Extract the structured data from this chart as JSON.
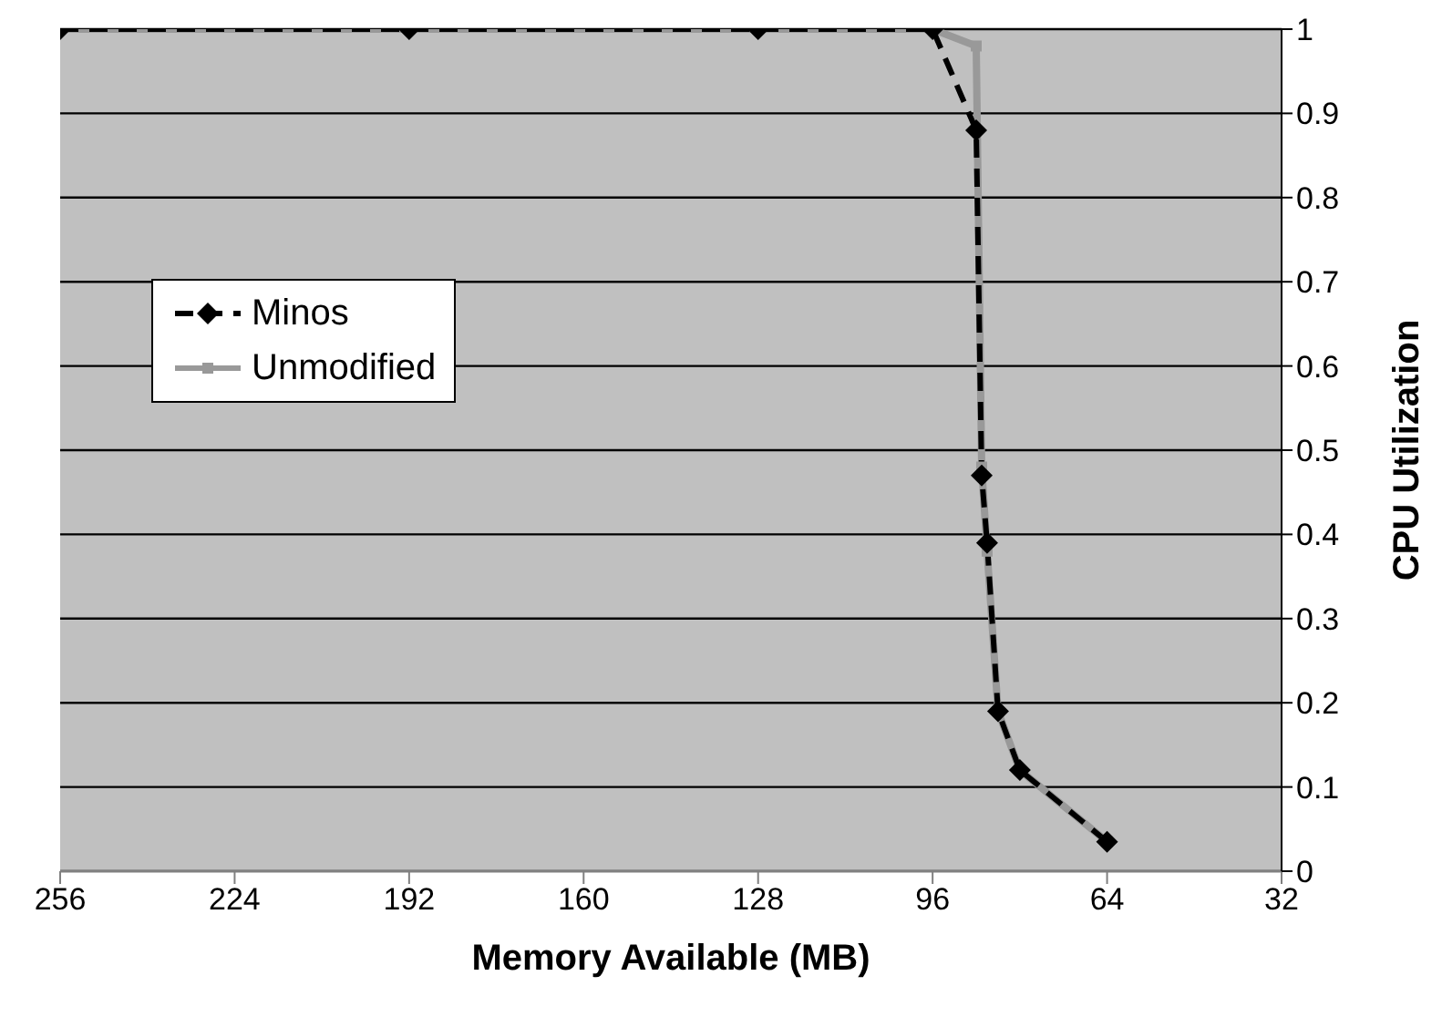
{
  "chart_data": {
    "type": "line",
    "xlabel": "Memory Available (MB)",
    "ylabel": "CPU Utilization",
    "xlim": [
      256,
      32
    ],
    "xticks": [
      256,
      224,
      192,
      160,
      128,
      96,
      64,
      32
    ],
    "ylim": [
      0,
      1
    ],
    "yticks": [
      0,
      0.1,
      0.2,
      0.3,
      0.4,
      0.5,
      0.6,
      0.7,
      0.8,
      0.9,
      1
    ],
    "grid": "y",
    "legend": "left",
    "series": [
      {
        "name": "Minos",
        "color": "#000000",
        "marker": "diamond",
        "line_style": "dashed",
        "x": [
          256,
          192,
          128,
          96,
          88,
          87,
          86,
          84,
          80,
          64
        ],
        "values": [
          1,
          1,
          1,
          1,
          0.88,
          0.47,
          0.39,
          0.19,
          0.12,
          0.035
        ]
      },
      {
        "name": "Unmodified",
        "color": "#999999",
        "marker": "square",
        "line_style": "solid",
        "x": [
          256,
          192,
          128,
          96,
          88,
          87,
          86,
          84,
          80,
          64
        ],
        "values": [
          1,
          1,
          1,
          1,
          0.98,
          0.48,
          0.38,
          0.19,
          0.12,
          0.035
        ]
      }
    ]
  }
}
